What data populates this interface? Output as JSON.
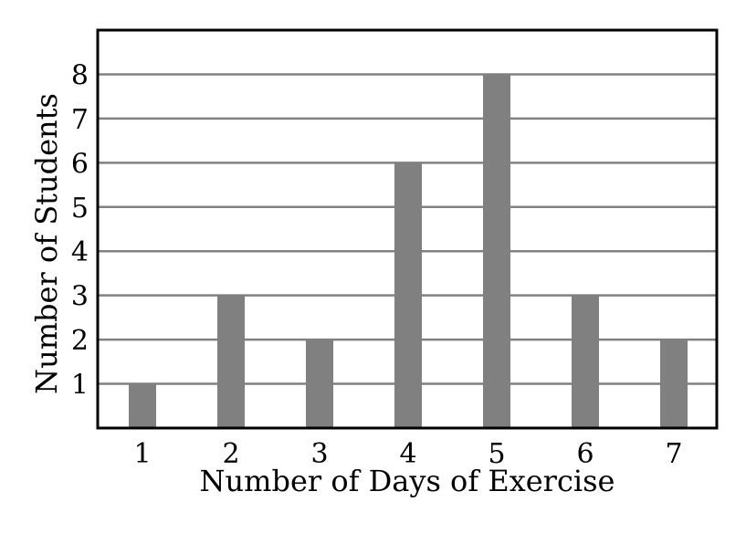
{
  "chart_data": {
    "type": "bar",
    "title": "",
    "xlabel": "Number of Days of Exercise",
    "ylabel": "Number of Students",
    "categories": [
      "1",
      "2",
      "3",
      "4",
      "5",
      "6",
      "7"
    ],
    "values": [
      1,
      3,
      2,
      6,
      8,
      3,
      2
    ],
    "yticks": [
      "1",
      "2",
      "3",
      "4",
      "5",
      "6",
      "7",
      "8"
    ],
    "ylim": [
      0,
      9
    ],
    "grid": "horizontal",
    "legend": "none",
    "colors": {
      "bar": "#808080",
      "grid": "#808080",
      "frame": "#000000",
      "text": "#000000"
    }
  }
}
